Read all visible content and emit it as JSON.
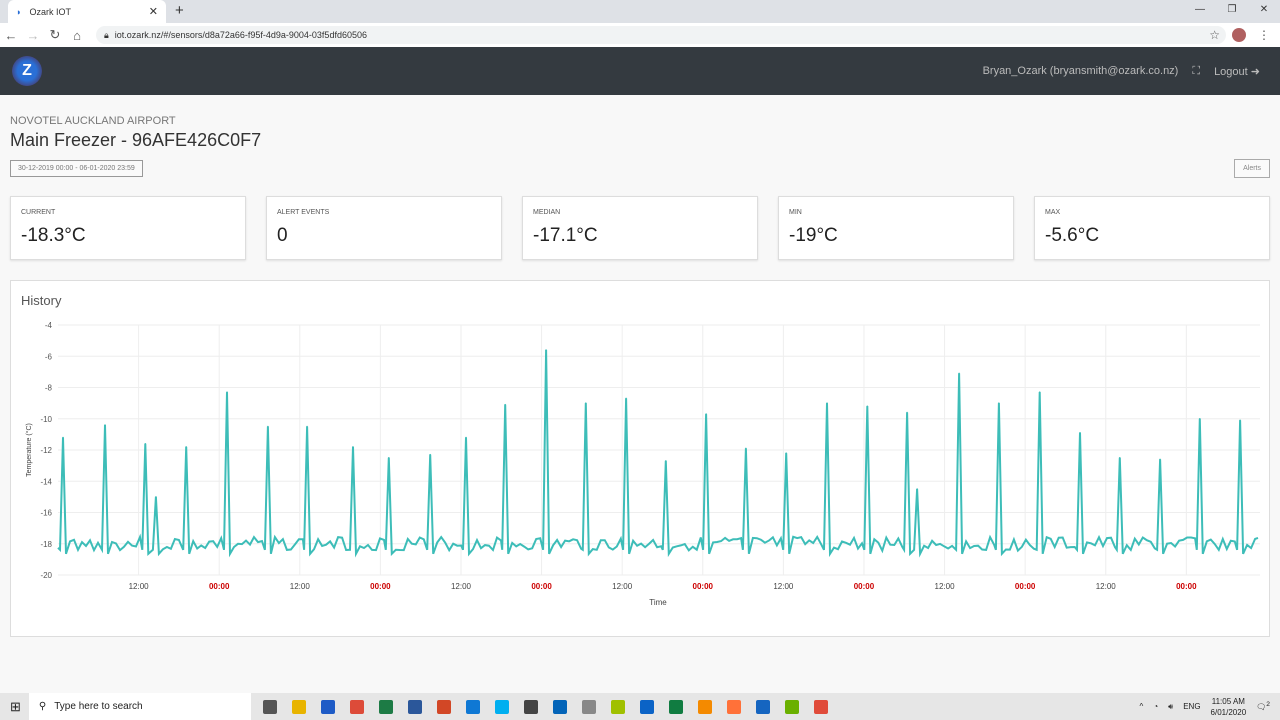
{
  "browser": {
    "tab_title": "Ozark IOT",
    "url": "iot.ozark.nz/#/sensors/d8a72a66-f95f-4d9a-9004-03f5dfd60506"
  },
  "header": {
    "logo": "Z",
    "user": "Bryan_Ozark (bryansmith@ozark.co.nz)",
    "logout": "Logout"
  },
  "page": {
    "location": "NOVOTEL AUCKLAND AIRPORT",
    "title": "Main Freezer - 96AFE426C0F7",
    "date_range": "30-12-2019 00:00 - 06-01-2020 23:59",
    "alerts_button": "Alerts"
  },
  "stats": [
    {
      "label": "CURRENT",
      "value": "-18.3°C"
    },
    {
      "label": "ALERT EVENTS",
      "value": "0"
    },
    {
      "label": "MEDIAN",
      "value": "-17.1°C"
    },
    {
      "label": "MIN",
      "value": "-19°C"
    },
    {
      "label": "MAX",
      "value": "-5.6°C"
    }
  ],
  "history": {
    "title": "History"
  },
  "chart_data": {
    "type": "line",
    "xlabel": "Time",
    "ylabel": "Temperature (°C)",
    "ylim": [
      -20,
      -4
    ],
    "yticks": [
      -4,
      -6,
      -8,
      -10,
      -12,
      -14,
      -16,
      -18,
      -20
    ],
    "xlim": [
      "2019-12-30 00:00",
      "2020-01-06 10:40"
    ],
    "xticks": [
      {
        "t": "2019-12-30 12:00",
        "label": "12:00"
      },
      {
        "t": "2019-12-31 00:00",
        "label": "00:00"
      },
      {
        "t": "2019-12-31 12:00",
        "label": "12:00"
      },
      {
        "t": "2020-01-01 00:00",
        "label": "00:00"
      },
      {
        "t": "2020-01-01 12:00",
        "label": "12:00"
      },
      {
        "t": "2020-01-02 00:00",
        "label": "00:00"
      },
      {
        "t": "2020-01-02 12:00",
        "label": "12:00"
      },
      {
        "t": "2020-01-03 00:00",
        "label": "00:00"
      },
      {
        "t": "2020-01-03 12:00",
        "label": "12:00"
      },
      {
        "t": "2020-01-04 00:00",
        "label": "00:00"
      },
      {
        "t": "2020-01-04 12:00",
        "label": "12:00"
      },
      {
        "t": "2020-01-05 00:00",
        "label": "00:00"
      },
      {
        "t": "2020-01-05 12:00",
        "label": "12:00"
      },
      {
        "t": "2020-01-06 00:00",
        "label": "00:00"
      }
    ],
    "midnight_label_color": "#cc0000",
    "line_color": "#3dbdb8",
    "grid": true,
    "baseline": -18,
    "peaks": [
      [
        "2019-12-30 00:45",
        -11.2
      ],
      [
        "2019-12-30 07:00",
        -10.4
      ],
      [
        "2019-12-30 13:00",
        -11.6
      ],
      [
        "2019-12-30 14:35",
        -15
      ],
      [
        "2019-12-30 19:05",
        -11.8
      ],
      [
        "2019-12-31 01:10",
        -8.3
      ],
      [
        "2019-12-31 07:15",
        -10.5
      ],
      [
        "2019-12-31 13:05",
        -10.5
      ],
      [
        "2019-12-31 19:55",
        -11.8
      ],
      [
        "2020-01-01 01:15",
        -12.5
      ],
      [
        "2020-01-01 07:25",
        -12.3
      ],
      [
        "2020-01-01 12:45",
        -11.2
      ],
      [
        "2020-01-01 18:35",
        -9.1
      ],
      [
        "2020-01-02 00:40",
        -5.6
      ],
      [
        "2020-01-02 06:35",
        -9
      ],
      [
        "2020-01-02 12:35",
        -8.7
      ],
      [
        "2020-01-02 18:30",
        -12.7
      ],
      [
        "2020-01-03 00:30",
        -9.7
      ],
      [
        "2020-01-03 06:25",
        -11.9
      ],
      [
        "2020-01-03 12:25",
        -12.2
      ],
      [
        "2020-01-03 18:30",
        -9
      ],
      [
        "2020-01-04 00:30",
        -9.2
      ],
      [
        "2020-01-04 06:25",
        -9.6
      ],
      [
        "2020-01-04 07:55",
        -14.5
      ],
      [
        "2020-01-04 14:10",
        -7.1
      ],
      [
        "2020-01-04 20:05",
        -9
      ],
      [
        "2020-01-05 02:10",
        -8.3
      ],
      [
        "2020-01-05 08:10",
        -10.9
      ],
      [
        "2020-01-05 14:05",
        -12.5
      ],
      [
        "2020-01-05 20:05",
        -12.6
      ],
      [
        "2020-01-06 02:00",
        -10
      ],
      [
        "2020-01-06 08:00",
        -10.1
      ]
    ]
  },
  "taskbar": {
    "search_placeholder": "Type here to search",
    "lang": "ENG",
    "time": "11:05 AM",
    "date": "6/01/2020",
    "notif_count": "2",
    "app_colors": [
      "#555",
      "#e8b400",
      "#1e5bc6",
      "#dd4b39",
      "#1d7b45",
      "#2b579a",
      "#d24726",
      "#0f78d4",
      "#00aff0",
      "#444",
      "#0364b8",
      "#888",
      "#a0c000",
      "#0b63c6",
      "#107c41",
      "#f48a00",
      "#ff7139",
      "#1565c0",
      "#6ab000",
      "#e04b3a"
    ]
  }
}
